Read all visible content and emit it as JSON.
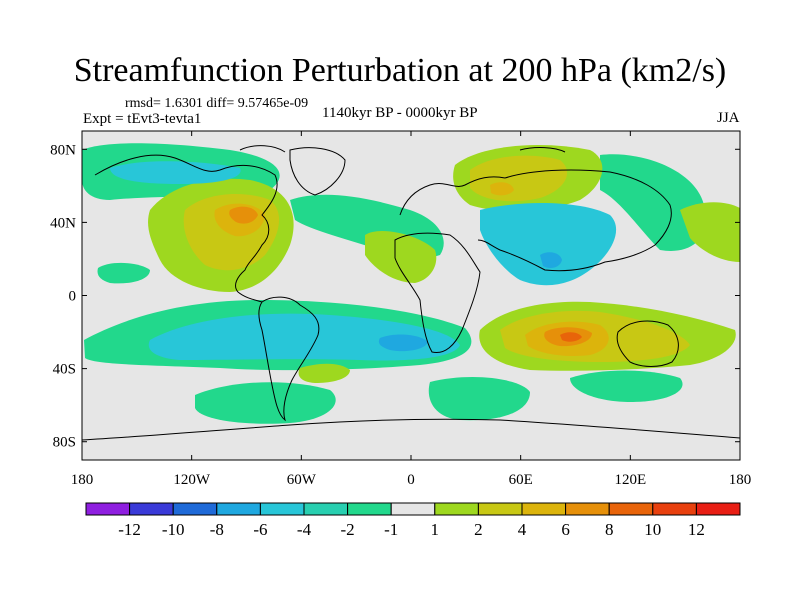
{
  "title": "Streamfunction Perturbation at 200 hPa (km2/s)",
  "stats": "rmsd= 1.6301 diff= 9.57465e-09",
  "experiment": "Expt = tEvt3-tevta1",
  "period": "1140kyr BP - 0000kyr BP",
  "season": "JJA",
  "map": {
    "lon_range": [
      -180,
      180
    ],
    "lat_range": [
      -90,
      90
    ],
    "x_ticks": [
      {
        "value": -180,
        "label": "180"
      },
      {
        "value": -120,
        "label": "120W"
      },
      {
        "value": -60,
        "label": "60W"
      },
      {
        "value": 0,
        "label": "0"
      },
      {
        "value": 60,
        "label": "60E"
      },
      {
        "value": 120,
        "label": "120E"
      },
      {
        "value": 180,
        "label": "180"
      }
    ],
    "y_ticks": [
      {
        "value": 80,
        "label": "80N"
      },
      {
        "value": 40,
        "label": "40N"
      },
      {
        "value": 0,
        "label": "0"
      },
      {
        "value": -40,
        "label": "40S"
      },
      {
        "value": -80,
        "label": "80S"
      }
    ]
  },
  "colorbar": {
    "colors": [
      "#8f1fe0",
      "#3a3ad8",
      "#1f6ad8",
      "#1fa8e0",
      "#28c6d8",
      "#28cfb0",
      "#22d88c",
      "#e6e6e6",
      "#9ed81f",
      "#c8c814",
      "#dcb40c",
      "#e6900a",
      "#e8640a",
      "#e8400e",
      "#e81e14"
    ],
    "labels": [
      "-12",
      "-10",
      "-8",
      "-6",
      "-4",
      "-2",
      "-1",
      "1",
      "2",
      "4",
      "6",
      "8",
      "10",
      "12"
    ]
  },
  "chart_data": {
    "type": "contour_map",
    "field": "200 hPa streamfunction perturbation (km2/s)",
    "features": [
      {
        "region": "North America (~40N, 95W)",
        "sign": "positive",
        "peak": 6
      },
      {
        "region": "North Atlantic / Europe (~50-60N)",
        "sign": "negative",
        "peak": -2
      },
      {
        "region": "North Siberia (~60N, 50E)",
        "sign": "positive",
        "peak": 6
      },
      {
        "region": "Arabia / Central Asia (~30N, 60-80E)",
        "sign": "negative",
        "peak": -4
      },
      {
        "region": "North Pacific (~60N, 150W)",
        "sign": "negative",
        "peak": -2
      },
      {
        "region": "South America / South Atlantic (~30S, 60-20W)",
        "sign": "negative",
        "peak": -6
      },
      {
        "region": "Indian Ocean / Australia (~30S, 90E)",
        "sign": "positive",
        "peak": 8
      },
      {
        "region": "Southern Ocean (~55S, 120W)",
        "sign": "negative",
        "peak": -2
      }
    ]
  }
}
